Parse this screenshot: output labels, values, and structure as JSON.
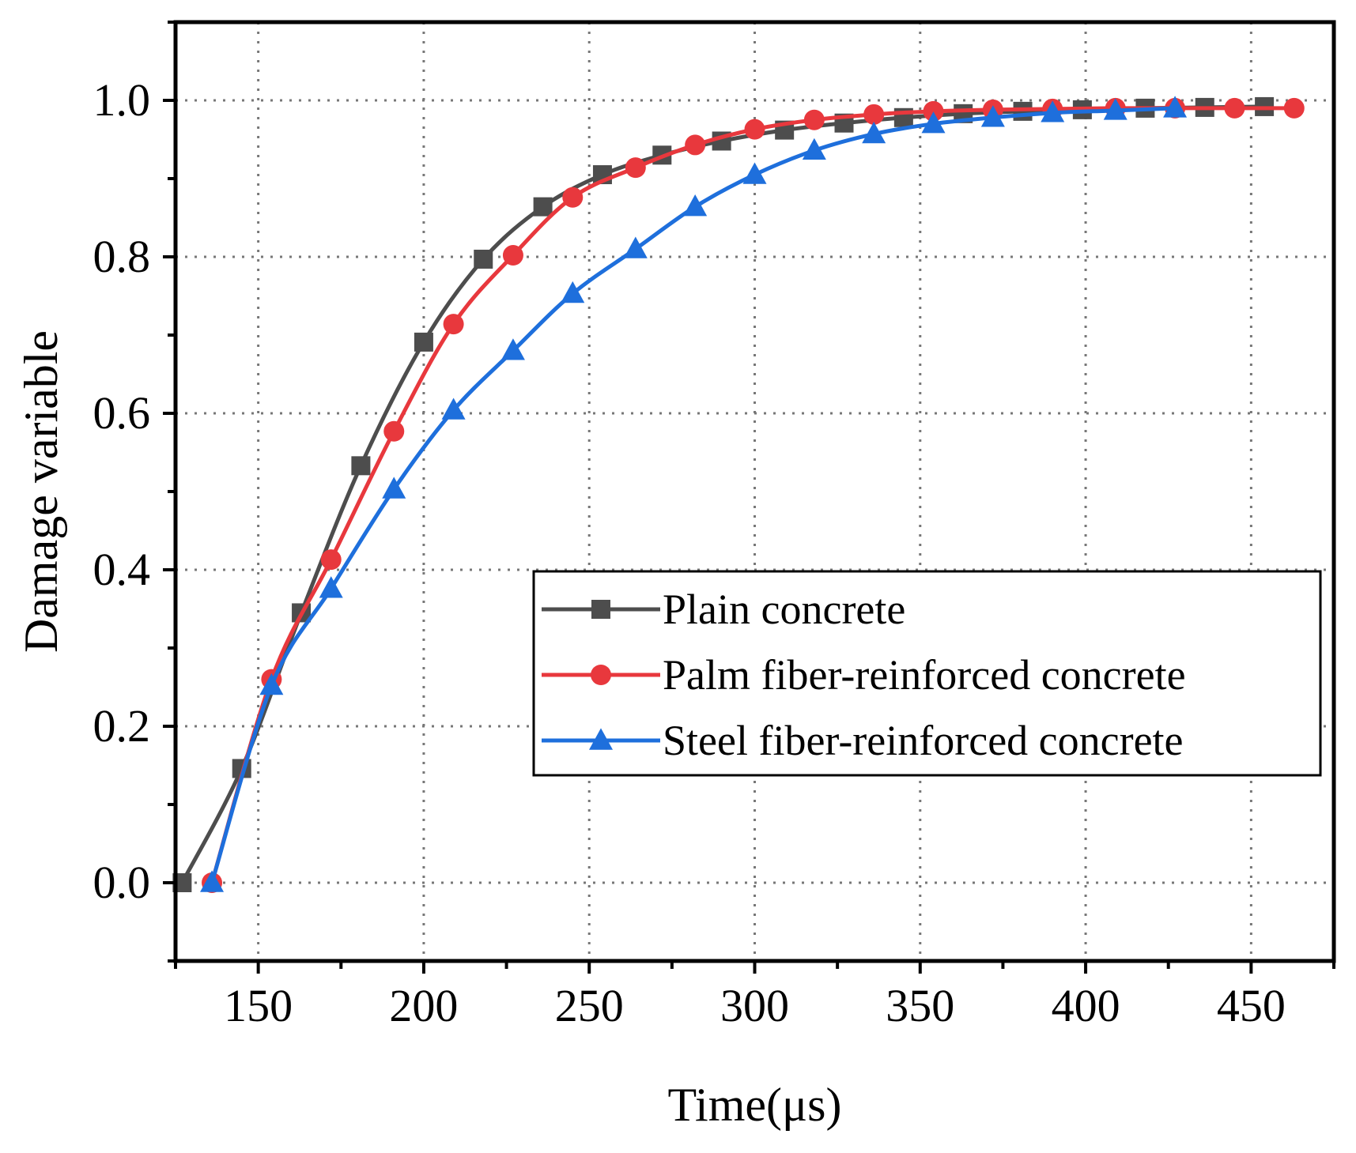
{
  "chart_data": {
    "type": "line",
    "title": "",
    "xlabel": "Time(μs)",
    "ylabel": "Damage variable",
    "xlim": [
      125,
      475
    ],
    "ylim": [
      -0.1,
      1.1
    ],
    "xticks": [
      150,
      200,
      250,
      300,
      350,
      400,
      450
    ],
    "xtick_labels": [
      "150",
      "200",
      "250",
      "300",
      "350",
      "400",
      "450"
    ],
    "yticks": [
      0.0,
      0.2,
      0.4,
      0.6,
      0.8,
      1.0
    ],
    "ytick_labels": [
      "0.0",
      "0.2",
      "0.4",
      "0.6",
      "0.8",
      "1.0"
    ],
    "grid": true,
    "legend_position": "center-right",
    "series": [
      {
        "name": "Plain concrete",
        "color": "#4d4d4d",
        "marker": "square",
        "x": [
          127,
          145,
          163,
          181,
          200,
          218,
          236,
          254,
          272,
          290,
          309,
          327,
          345,
          363,
          381,
          399,
          418,
          436,
          454
        ],
        "y": [
          0.0,
          0.146,
          0.345,
          0.533,
          0.691,
          0.797,
          0.864,
          0.905,
          0.93,
          0.948,
          0.962,
          0.971,
          0.978,
          0.983,
          0.986,
          0.988,
          0.99,
          0.991,
          0.992
        ]
      },
      {
        "name": "Palm fiber-reinforced concrete",
        "color": "#e8383d",
        "marker": "circle",
        "x": [
          136,
          154,
          172,
          191,
          209,
          227,
          245,
          264,
          282,
          300,
          318,
          336,
          354,
          372,
          390,
          409,
          427,
          445,
          463
        ],
        "y": [
          0.0,
          0.26,
          0.413,
          0.577,
          0.714,
          0.802,
          0.876,
          0.914,
          0.943,
          0.963,
          0.975,
          0.982,
          0.986,
          0.988,
          0.989,
          0.99,
          0.99,
          0.99,
          0.99
        ]
      },
      {
        "name": "Steel fiber-reinforced concrete",
        "color": "#1e6fdc",
        "marker": "triangle",
        "x": [
          136,
          154,
          172,
          191,
          209,
          227,
          245,
          264,
          282,
          300,
          318,
          336,
          354,
          372,
          390,
          409,
          427
        ],
        "y": [
          0.0,
          0.252,
          0.376,
          0.503,
          0.604,
          0.68,
          0.753,
          0.81,
          0.864,
          0.905,
          0.936,
          0.957,
          0.97,
          0.978,
          0.984,
          0.987,
          0.99
        ]
      }
    ]
  }
}
